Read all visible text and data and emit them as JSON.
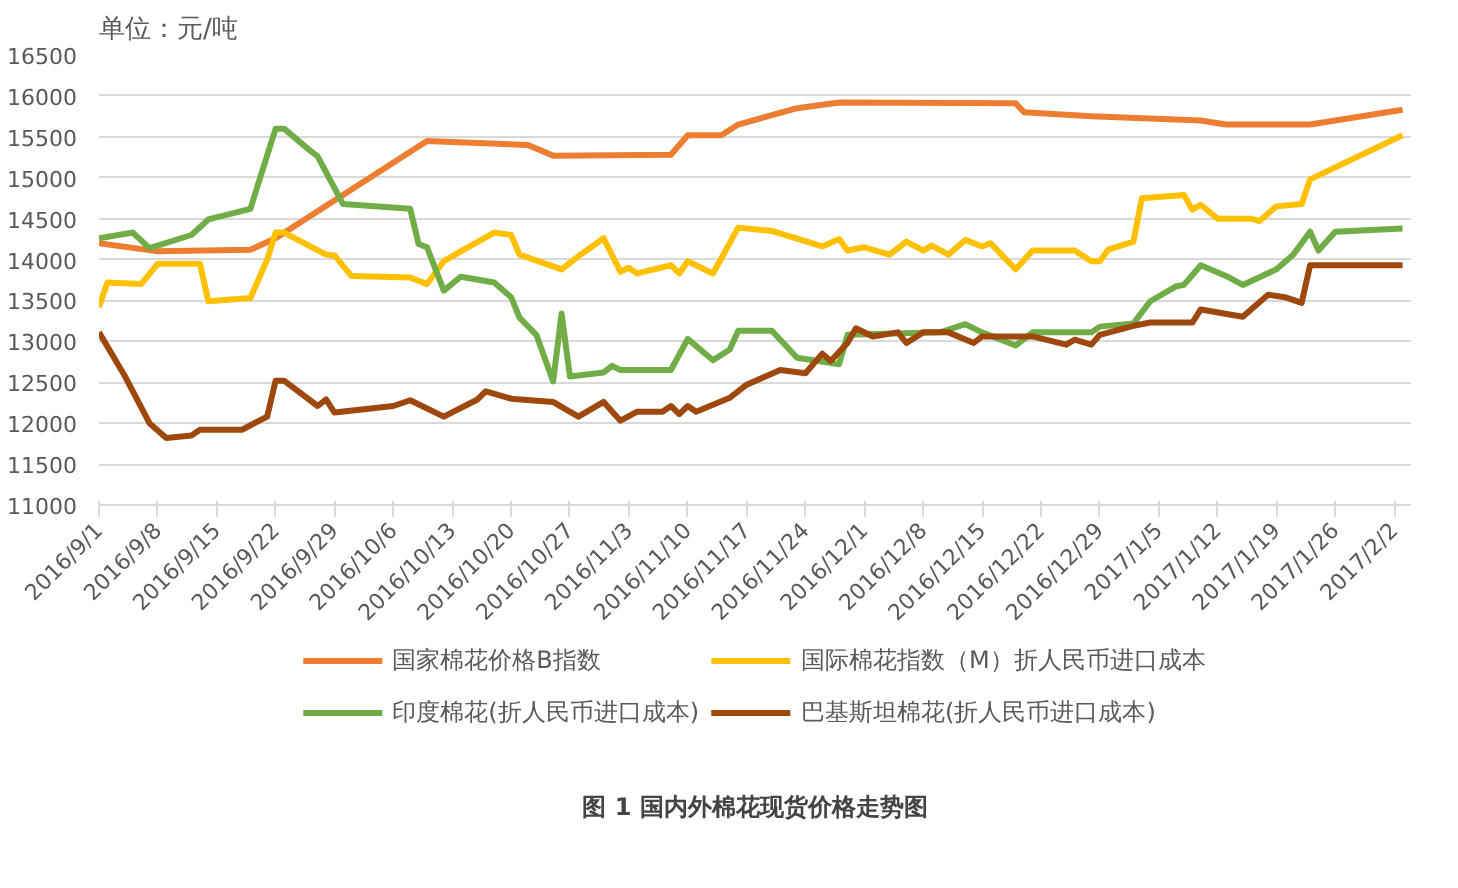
{
  "chart_data": {
    "type": "line",
    "title": "图 1 国内外棉花现货价格走势图",
    "annotations": [
      "单位：元/吨"
    ],
    "xlim": [
      "2016-09-01",
      "2017-02-04"
    ],
    "xticks": [
      {
        "value": "2016-09-01",
        "label": "2016/9/1"
      },
      {
        "value": "2016-09-08",
        "label": "2016/9/8"
      },
      {
        "value": "2016-09-15",
        "label": "2016/9/15"
      },
      {
        "value": "2016-09-22",
        "label": "2016/9/22"
      },
      {
        "value": "2016-09-29",
        "label": "2016/9/29"
      },
      {
        "value": "2016-10-06",
        "label": "2016/10/6"
      },
      {
        "value": "2016-10-13",
        "label": "2016/10/13"
      },
      {
        "value": "2016-10-20",
        "label": "2016/10/20"
      },
      {
        "value": "2016-10-27",
        "label": "2016/10/27"
      },
      {
        "value": "2016-11-03",
        "label": "2016/11/3"
      },
      {
        "value": "2016-11-10",
        "label": "2016/11/10"
      },
      {
        "value": "2016-11-17",
        "label": "2016/11/17"
      },
      {
        "value": "2016-11-24",
        "label": "2016/11/24"
      },
      {
        "value": "2016-12-01",
        "label": "2016/12/1"
      },
      {
        "value": "2016-12-08",
        "label": "2016/12/8"
      },
      {
        "value": "2016-12-15",
        "label": "2016/12/15"
      },
      {
        "value": "2016-12-22",
        "label": "2016/12/22"
      },
      {
        "value": "2016-12-29",
        "label": "2016/12/29"
      },
      {
        "value": "2017-01-05",
        "label": "2017/1/5"
      },
      {
        "value": "2017-01-12",
        "label": "2017/1/12"
      },
      {
        "value": "2017-01-19",
        "label": "2017/1/19"
      },
      {
        "value": "2017-01-26",
        "label": "2017/1/26"
      },
      {
        "value": "2017-02-02",
        "label": "2017/2/2"
      }
    ],
    "ylim": [
      11000,
      16500
    ],
    "yticks": [
      11000,
      11500,
      12000,
      12500,
      13000,
      13500,
      14000,
      14500,
      15000,
      15500,
      16000,
      16500
    ],
    "grid": "y",
    "legend": "bottom",
    "marker": "none",
    "line_style": "solid",
    "series": [
      {
        "name": "国家棉花价格B指数",
        "color": "#ed7d31",
        "x": [
          "2016-09-01",
          "2016-09-08",
          "2016-09-19",
          "2016-09-22",
          "2016-10-10",
          "2016-10-22",
          "2016-10-25",
          "2016-11-08",
          "2016-11-10",
          "2016-11-14",
          "2016-11-16",
          "2016-11-23",
          "2016-11-28",
          "2016-12-19",
          "2016-12-20",
          "2016-12-28",
          "2017-01-10",
          "2017-01-13",
          "2017-01-23",
          "2017-01-26",
          "2017-02-03"
        ],
        "values": [
          14200,
          14100,
          14120,
          14260,
          15450,
          15400,
          15270,
          15280,
          15520,
          15520,
          15650,
          15850,
          15920,
          15910,
          15800,
          15750,
          15700,
          15650,
          15650,
          15700,
          15830
        ]
      },
      {
        "name": "国际棉花指数（M）折人民币进口成本",
        "color": "#ffc000",
        "x": [
          "2016-09-01",
          "2016-09-02",
          "2016-09-06",
          "2016-09-08",
          "2016-09-13",
          "2016-09-14",
          "2016-09-19",
          "2016-09-21",
          "2016-09-22",
          "2016-09-23",
          "2016-09-28",
          "2016-09-29",
          "2016-10-01",
          "2016-10-08",
          "2016-10-10",
          "2016-10-12",
          "2016-10-14",
          "2016-10-18",
          "2016-10-20",
          "2016-10-21",
          "2016-10-26",
          "2016-10-28",
          "2016-10-31",
          "2016-11-02",
          "2016-11-03",
          "2016-11-04",
          "2016-11-08",
          "2016-11-09",
          "2016-11-10",
          "2016-11-13",
          "2016-11-16",
          "2016-11-20",
          "2016-11-26",
          "2016-11-28",
          "2016-11-29",
          "2016-12-01",
          "2016-12-04",
          "2016-12-06",
          "2016-12-08",
          "2016-12-09",
          "2016-12-11",
          "2016-12-13",
          "2016-12-15",
          "2016-12-16",
          "2016-12-19",
          "2016-12-21",
          "2016-12-26",
          "2016-12-28",
          "2016-12-29",
          "2016-12-30",
          "2017-01-02",
          "2017-01-03",
          "2017-01-08",
          "2017-01-09",
          "2017-01-10",
          "2017-01-12",
          "2017-01-16",
          "2017-01-17",
          "2017-01-19",
          "2017-01-22",
          "2017-01-23",
          "2017-02-03"
        ],
        "values": [
          13420,
          13720,
          13700,
          13950,
          13950,
          13490,
          13530,
          14000,
          14330,
          14330,
          14060,
          14050,
          13800,
          13780,
          13700,
          13980,
          14100,
          14330,
          14300,
          14060,
          13880,
          14040,
          14260,
          13850,
          13900,
          13830,
          13930,
          13830,
          13980,
          13830,
          14390,
          14350,
          14160,
          14250,
          14110,
          14150,
          14060,
          14220,
          14110,
          14170,
          14060,
          14240,
          14160,
          14200,
          13880,
          14110,
          14110,
          13980,
          13980,
          14120,
          14220,
          14750,
          14790,
          14610,
          14670,
          14500,
          14500,
          14470,
          14650,
          14680,
          14980,
          15520
        ]
      },
      {
        "name": "印度棉花(折人民币进口成本)",
        "color": "#70ad47",
        "x": [
          "2016-09-01",
          "2016-09-05",
          "2016-09-07",
          "2016-09-12",
          "2016-09-14",
          "2016-09-19",
          "2016-09-22",
          "2016-09-23",
          "2016-09-26",
          "2016-09-27",
          "2016-09-30",
          "2016-10-08",
          "2016-10-09",
          "2016-10-10",
          "2016-10-12",
          "2016-10-14",
          "2016-10-18",
          "2016-10-20",
          "2016-10-21",
          "2016-10-23",
          "2016-10-25",
          "2016-10-26",
          "2016-10-27",
          "2016-10-31",
          "2016-11-01",
          "2016-11-02",
          "2016-11-08",
          "2016-11-10",
          "2016-11-13",
          "2016-11-15",
          "2016-11-16",
          "2016-11-20",
          "2016-11-23",
          "2016-11-28",
          "2016-11-29",
          "2016-12-10",
          "2016-12-13",
          "2016-12-15",
          "2016-12-19",
          "2016-12-21",
          "2016-12-28",
          "2016-12-29",
          "2017-01-02",
          "2017-01-04",
          "2017-01-07",
          "2017-01-08",
          "2017-01-10",
          "2017-01-13",
          "2017-01-15",
          "2017-01-19",
          "2017-01-21",
          "2017-01-23",
          "2017-01-24",
          "2017-01-26",
          "2017-02-03"
        ],
        "values": [
          14260,
          14330,
          14140,
          14300,
          14490,
          14620,
          15600,
          15600,
          15340,
          15260,
          14680,
          14620,
          14190,
          14150,
          13620,
          13790,
          13720,
          13540,
          13290,
          13080,
          12510,
          13340,
          12570,
          12620,
          12700,
          12650,
          12650,
          13030,
          12770,
          12900,
          13130,
          13130,
          12800,
          12720,
          13080,
          13110,
          13210,
          13110,
          12950,
          13110,
          13110,
          13180,
          13220,
          13490,
          13670,
          13690,
          13930,
          13800,
          13690,
          13880,
          14060,
          14340,
          14110,
          14340,
          14380
        ]
      },
      {
        "name": "巴基斯坦棉花(折人民币进口成本)",
        "color": "#9e480e",
        "x": [
          "2016-09-01",
          "2016-09-04",
          "2016-09-07",
          "2016-09-09",
          "2016-09-12",
          "2016-09-13",
          "2016-09-18",
          "2016-09-21",
          "2016-09-22",
          "2016-09-23",
          "2016-09-27",
          "2016-09-28",
          "2016-09-29",
          "2016-10-06",
          "2016-10-08",
          "2016-10-12",
          "2016-10-16",
          "2016-10-17",
          "2016-10-20",
          "2016-10-25",
          "2016-10-26",
          "2016-10-28",
          "2016-10-31",
          "2016-11-02",
          "2016-11-04",
          "2016-11-07",
          "2016-11-08",
          "2016-11-09",
          "2016-11-10",
          "2016-11-11",
          "2016-11-15",
          "2016-11-17",
          "2016-11-21",
          "2016-11-24",
          "2016-11-26",
          "2016-11-27",
          "2016-11-29",
          "2016-11-30",
          "2016-12-02",
          "2016-12-05",
          "2016-12-06",
          "2016-12-08",
          "2016-12-11",
          "2016-12-14",
          "2016-12-15",
          "2016-12-21",
          "2016-12-25",
          "2016-12-26",
          "2016-12-28",
          "2016-12-29",
          "2017-01-02",
          "2017-01-04",
          "2017-01-09",
          "2017-01-10",
          "2017-01-15",
          "2017-01-18",
          "2017-01-20",
          "2017-01-22",
          "2017-01-23",
          "2017-02-03"
        ],
        "values": [
          13110,
          12590,
          12000,
          11820,
          11850,
          11920,
          11920,
          12080,
          12520,
          12520,
          12210,
          12290,
          12130,
          12210,
          12280,
          12080,
          12290,
          12390,
          12300,
          12260,
          12200,
          12080,
          12260,
          12030,
          12140,
          12140,
          12210,
          12110,
          12210,
          12140,
          12310,
          12470,
          12650,
          12610,
          12850,
          12760,
          12980,
          13160,
          13060,
          13110,
          12980,
          13110,
          13110,
          12980,
          13060,
          13060,
          12960,
          13020,
          12960,
          13080,
          13190,
          13230,
          13230,
          13390,
          13300,
          13570,
          13540,
          13470,
          13930,
          13930
        ]
      }
    ]
  }
}
